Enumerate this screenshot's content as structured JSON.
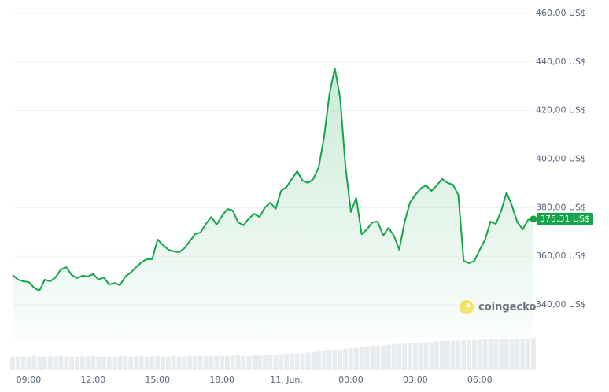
{
  "chart_data": {
    "type": "line",
    "watermark": "coingecko",
    "color": "#16a34a",
    "ylim": [
      335,
      465
    ],
    "yticks": [
      {
        "value": 340,
        "label": "340,00 US$"
      },
      {
        "value": 360,
        "label": "360,00 US$"
      },
      {
        "value": 380,
        "label": "380,00 US$"
      },
      {
        "value": 400,
        "label": "400,00 US$"
      },
      {
        "value": 420,
        "label": "420,00 US$"
      },
      {
        "value": 440,
        "label": "440,00 US$"
      },
      {
        "value": 460,
        "label": "460,00 US$"
      }
    ],
    "grid": true,
    "categories": [
      null,
      null,
      null,
      "09:00",
      null,
      null,
      null,
      null,
      null,
      null,
      null,
      null,
      null,
      null,
      null,
      "12:00",
      null,
      null,
      null,
      null,
      null,
      null,
      null,
      null,
      null,
      null,
      null,
      "15:00",
      null,
      null,
      null,
      null,
      null,
      null,
      null,
      null,
      null,
      null,
      null,
      "18:00",
      null,
      null,
      null,
      null,
      null,
      null,
      null,
      null,
      null,
      null,
      null,
      "11. Jun.",
      null,
      null,
      null,
      null,
      null,
      null,
      null,
      null,
      null,
      null,
      null,
      "00:00",
      null,
      null,
      null,
      null,
      null,
      null,
      null,
      null,
      null,
      null,
      null,
      "03:00",
      null,
      null,
      null,
      null,
      null,
      null,
      null,
      null,
      null,
      null,
      null,
      "06:00",
      null,
      null,
      null,
      null,
      null,
      null,
      null,
      null,
      null,
      null
    ],
    "values": [
      352.3,
      350.4,
      349.7,
      349.4,
      347.1,
      345.8,
      350.4,
      349.7,
      351.3,
      354.6,
      355.5,
      352.3,
      351.0,
      352.0,
      351.7,
      352.7,
      350.4,
      351.3,
      348.4,
      349.0,
      348.1,
      351.7,
      353.3,
      355.5,
      357.5,
      358.8,
      358.8,
      366.9,
      364.6,
      362.7,
      362.0,
      361.7,
      363.3,
      366.2,
      369.1,
      369.8,
      373.3,
      376.2,
      373.0,
      376.6,
      379.5,
      378.8,
      374.0,
      372.7,
      375.6,
      377.5,
      376.2,
      380.1,
      382.1,
      379.5,
      386.9,
      388.5,
      391.8,
      395.0,
      391.1,
      390.2,
      391.8,
      396.6,
      408.9,
      426.7,
      437.4,
      425.1,
      396.9,
      378.2,
      384.0,
      369.1,
      371.1,
      374.0,
      374.3,
      368.5,
      371.7,
      368.5,
      362.7,
      374.0,
      382.1,
      385.3,
      387.9,
      389.2,
      386.9,
      389.2,
      391.8,
      390.2,
      389.5,
      385.3,
      358.1,
      357.2,
      358.1,
      362.7,
      366.9,
      374.3,
      373.3,
      378.8,
      386.3,
      380.8,
      374.0,
      371.1,
      375.0,
      375.31
    ],
    "value_labels": [
      null,
      null,
      null,
      null,
      null,
      null,
      null,
      null,
      null,
      null,
      null,
      null,
      null,
      null,
      null,
      null,
      null,
      null,
      null,
      null,
      null,
      null,
      null,
      null,
      null,
      null,
      null,
      null,
      null,
      null,
      null,
      null,
      null,
      null,
      null,
      null,
      null,
      null,
      null,
      null,
      null,
      null,
      null,
      null,
      null,
      null,
      null,
      null,
      null,
      null,
      null,
      null,
      null,
      null,
      null,
      null,
      null,
      null,
      null,
      null,
      null,
      null,
      null,
      null,
      null,
      null,
      null,
      null,
      null,
      null,
      null,
      null,
      null,
      null,
      null,
      null,
      null,
      null,
      null,
      null,
      null,
      null,
      null,
      null,
      null,
      null,
      null,
      null,
      null,
      null,
      null,
      null,
      null,
      null,
      null,
      null,
      null,
      "375,31 US$"
    ],
    "volume": {
      "color": "#e9ecef",
      "ylim": [
        0,
        100
      ],
      "values": [
        42,
        41,
        43,
        42,
        44,
        42,
        41,
        43,
        42,
        44,
        43,
        42,
        41,
        43,
        42,
        44,
        42,
        43,
        41,
        42,
        44,
        43,
        42,
        43,
        44,
        42,
        43,
        44,
        43,
        42,
        44,
        43,
        42,
        44,
        43,
        45,
        44,
        43,
        44,
        45,
        44,
        45,
        46,
        45,
        44,
        46,
        45,
        46,
        47,
        46,
        47,
        49,
        50,
        52,
        53,
        55,
        56,
        58,
        59,
        61,
        62,
        64,
        66,
        68,
        69,
        71,
        72,
        74,
        76,
        77,
        79,
        80,
        82,
        83,
        84,
        85,
        86,
        87,
        88,
        89,
        90,
        91,
        92,
        92,
        93,
        93,
        94,
        94,
        95,
        95,
        96,
        96,
        97,
        97,
        98,
        98,
        98,
        99
      ]
    }
  }
}
